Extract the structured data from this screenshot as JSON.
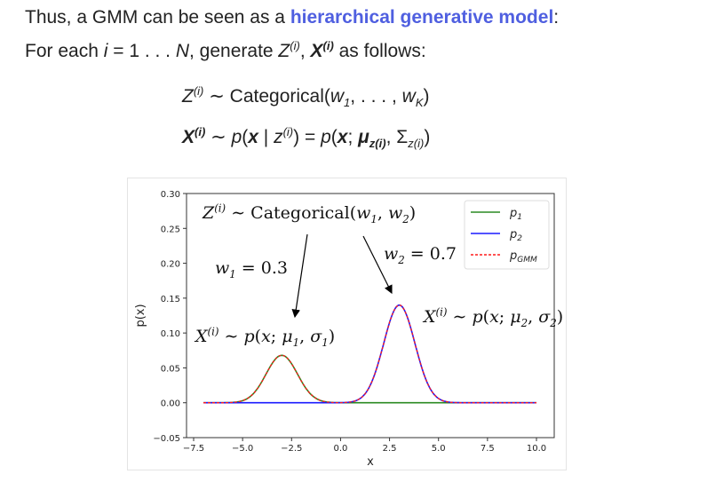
{
  "slide": {
    "line1": {
      "before": "Thus, a GMM can be seen as a ",
      "highlight": "hierarchical generative model",
      "after": ":"
    },
    "line2": [
      {
        "t": "For each "
      },
      {
        "t": "i",
        "i": true
      },
      {
        "t": " = 1 . . . "
      },
      {
        "t": "N",
        "i": true
      },
      {
        "t": ", generate "
      },
      {
        "t": "Z",
        "i": true,
        "sup": "(i)"
      },
      {
        "t": ", "
      },
      {
        "t": "X",
        "i": true,
        "b": true,
        "sup": "(i)"
      },
      {
        "t": " as follows:"
      }
    ],
    "eq1": [
      {
        "t": "Z",
        "i": true,
        "sup": "(i)"
      },
      {
        "t": " ∼ Categorical("
      },
      {
        "t": "w",
        "i": true,
        "sub": "1"
      },
      {
        "t": ", . . . , "
      },
      {
        "t": "w",
        "i": true,
        "sub": "K"
      },
      {
        "t": ")"
      }
    ],
    "eq2": [
      {
        "t": "X",
        "i": true,
        "b": true,
        "sup": "(i)"
      },
      {
        "t": " ∼ "
      },
      {
        "t": "p",
        "i": true
      },
      {
        "t": "("
      },
      {
        "t": "x",
        "i": true,
        "b": true
      },
      {
        "t": " | "
      },
      {
        "t": "z",
        "i": true,
        "sup": "(i)"
      },
      {
        "t": ") = "
      },
      {
        "t": "p",
        "i": true
      },
      {
        "t": "("
      },
      {
        "t": "x",
        "i": true,
        "b": true
      },
      {
        "t": "; "
      },
      {
        "t": "μ",
        "i": true,
        "b": true,
        "sub": "z(i)"
      },
      {
        "t": ", Σ"
      },
      {
        "t": "",
        "sub": "z(i)"
      },
      {
        "t": ")"
      }
    ]
  },
  "chart_data": {
    "type": "line",
    "xlabel": "x",
    "ylabel": "p(x)",
    "xlim": [
      -7.5,
      10.0
    ],
    "ylim": [
      -0.05,
      0.3
    ],
    "x_range_plotted": [
      -7,
      10
    ],
    "xticks": [
      "−7.5",
      "−5.0",
      "−2.5",
      "0.0",
      "2.5",
      "5.0",
      "7.5",
      "10.0"
    ],
    "xtick_values": [
      -7.5,
      -5.0,
      -2.5,
      0.0,
      2.5,
      5.0,
      7.5,
      10.0
    ],
    "yticks": [
      "−0.05",
      "0.00",
      "0.05",
      "0.10",
      "0.15",
      "0.20",
      "0.25",
      "0.30"
    ],
    "ytick_values": [
      -0.05,
      0.0,
      0.05,
      0.1,
      0.15,
      0.2,
      0.25,
      0.3
    ],
    "grid": false,
    "legend_position": "top-right",
    "series": [
      {
        "name": "p1",
        "legend_base": "p",
        "legend_sub": "1",
        "color": "#2a8a22",
        "style": "solid",
        "mu": -3,
        "sigma": 0.8,
        "peak": 0.068
      },
      {
        "name": "p2",
        "legend_base": "p",
        "legend_sub": "2",
        "color": "#1a1aff",
        "style": "solid",
        "mu": 3,
        "sigma": 0.8,
        "peak": 0.14
      },
      {
        "name": "pGMM",
        "legend_base": "p",
        "legend_sub": "GMM",
        "color": "#ff1a1a",
        "style": "dashed",
        "sum_of": [
          "p1",
          "p2"
        ]
      }
    ],
    "annotations": {
      "categorical": [
        {
          "t": "Z",
          "i": true,
          "sup": "(i)"
        },
        {
          "t": " ∼ Categorical("
        },
        {
          "t": "w",
          "i": true,
          "sub": "1"
        },
        {
          "t": ", "
        },
        {
          "t": "w",
          "i": true,
          "sub": "2"
        },
        {
          "t": ")"
        }
      ],
      "w1": [
        {
          "t": "w",
          "i": true,
          "sub": "1"
        },
        {
          "t": " = 0.3"
        }
      ],
      "w2": [
        {
          "t": "w",
          "i": true,
          "sub": "2"
        },
        {
          "t": " = 0.7"
        }
      ],
      "x1": [
        {
          "t": "X",
          "i": true,
          "sup": "(i)"
        },
        {
          "t": " ∼ "
        },
        {
          "t": "p",
          "i": true
        },
        {
          "t": "("
        },
        {
          "t": "x",
          "i": true
        },
        {
          "t": "; "
        },
        {
          "t": "μ",
          "i": true,
          "sub": "1"
        },
        {
          "t": ", "
        },
        {
          "t": "σ",
          "i": true,
          "sub": "1"
        },
        {
          "t": ")"
        }
      ],
      "x2": [
        {
          "t": "X",
          "i": true,
          "sup": "(i)"
        },
        {
          "t": " ∼ "
        },
        {
          "t": "p",
          "i": true
        },
        {
          "t": "("
        },
        {
          "t": "x",
          "i": true
        },
        {
          "t": "; "
        },
        {
          "t": "μ",
          "i": true,
          "sub": "2"
        },
        {
          "t": ", "
        },
        {
          "t": "σ",
          "i": true,
          "sub": "2"
        },
        {
          "t": ")"
        }
      ]
    }
  }
}
